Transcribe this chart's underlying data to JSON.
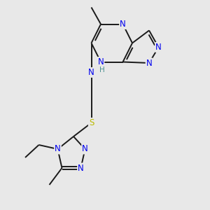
{
  "background_color": "#e8e8e8",
  "bond_color": "#1a1a1a",
  "atom_colors": {
    "N": "#0000ee",
    "S": "#bbbb00",
    "C": "#1a1a1a",
    "H": "#4a9090"
  },
  "bond_width": 1.4,
  "dbo": 0.055,
  "font_size_atom": 8.5
}
